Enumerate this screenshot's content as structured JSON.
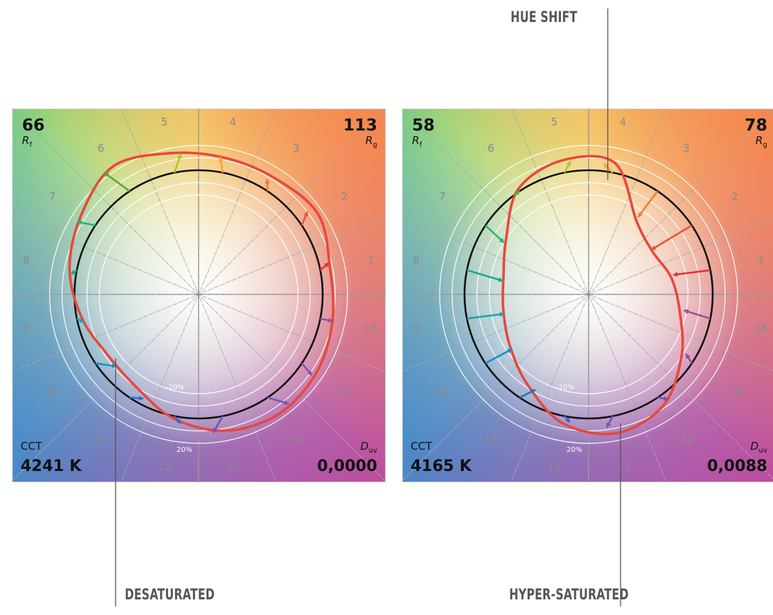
{
  "colors": {
    "reference_circle": "#111111",
    "test_curve": "#e8483b",
    "callout_line": "#555555",
    "guide_line": "#999999",
    "ring_line": "#ffffff"
  },
  "callouts": {
    "hue_shift": "HUE SHIFT",
    "desaturated": "DESATURATED",
    "hyper_saturated": "HYPER-SATURATED"
  },
  "panels": [
    {
      "rf_value": "66",
      "rf_symbol": "R",
      "rf_sub": "f",
      "rg_value": "113",
      "rg_symbol": "R",
      "rg_sub": "g",
      "cct_label": "CCT",
      "cct_value": "4241 K",
      "duv_symbol": "D",
      "duv_sub": "uv",
      "duv_value": "0,0000",
      "ring_label_inner": "-20%",
      "ring_label_outer": "20%",
      "hue_bin_labels": [
        "1",
        "2",
        "3",
        "4",
        "5",
        "6",
        "7",
        "8",
        "9",
        "10",
        "11",
        "12",
        "13",
        "14",
        "15",
        "16"
      ],
      "test_radius_ratio": [
        1.08,
        1.16,
        1.12,
        1.12,
        1.16,
        1.24,
        1.14,
        1.06,
        0.96,
        0.88,
        0.9,
        1.02,
        1.12,
        1.16,
        1.14,
        1.1
      ],
      "shift_vectors": [
        {
          "bin": 1,
          "ratio": 1.08,
          "dtheta": 0.04,
          "color": "#e8303a"
        },
        {
          "bin": 2,
          "ratio": 1.1,
          "dtheta": 0.06,
          "color": "#e8533a"
        },
        {
          "bin": 3,
          "ratio": 1.08,
          "dtheta": 0.05,
          "color": "#f07b2e"
        },
        {
          "bin": 4,
          "ratio": 1.12,
          "dtheta": 0.04,
          "color": "#f0a830"
        },
        {
          "bin": 5,
          "ratio": 1.14,
          "dtheta": -0.07,
          "color": "#b6c42e"
        },
        {
          "bin": 6,
          "ratio": 1.24,
          "dtheta": 0.07,
          "color": "#59a838"
        },
        {
          "bin": 7,
          "ratio": 1.14,
          "dtheta": 0.05,
          "color": "#2fb070"
        },
        {
          "bin": 8,
          "ratio": 1.04,
          "dtheta": 0.04,
          "color": "#18a890"
        },
        {
          "bin": 9,
          "ratio": 0.95,
          "dtheta": 0.04,
          "color": "#1aa3b0"
        },
        {
          "bin": 10,
          "ratio": 0.88,
          "dtheta": 0.13,
          "color": "#1a93c0"
        },
        {
          "bin": 11,
          "ratio": 0.95,
          "dtheta": 0.1,
          "color": "#2870c0"
        },
        {
          "bin": 12,
          "ratio": 1.05,
          "dtheta": 0.06,
          "color": "#4a5fc0"
        },
        {
          "bin": 13,
          "ratio": 1.12,
          "dtheta": -0.09,
          "color": "#6a58b8"
        },
        {
          "bin": 14,
          "ratio": 1.14,
          "dtheta": 0.1,
          "color": "#7a55b0"
        },
        {
          "bin": 15,
          "ratio": 1.12,
          "dtheta": -0.03,
          "color": "#8e4fa8"
        },
        {
          "bin": 16,
          "ratio": 1.1,
          "dtheta": 0.0,
          "color": "#a04f96"
        }
      ]
    },
    {
      "rf_value": "58",
      "rf_symbol": "R",
      "rf_sub": "f",
      "rg_value": "78",
      "rg_symbol": "R",
      "rg_sub": "g",
      "cct_label": "CCT",
      "cct_value": "4165 K",
      "duv_symbol": "D",
      "duv_sub": "uv",
      "duv_value": "0,0088",
      "ring_label_inner": "-20%",
      "ring_label_outer": "20%",
      "hue_bin_labels": [
        "1",
        "2",
        "3",
        "4",
        "5",
        "6",
        "7",
        "8",
        "9",
        "10",
        "11",
        "12",
        "13",
        "14",
        "15",
        "16"
      ],
      "test_radius_ratio": [
        0.68,
        0.62,
        0.7,
        1.08,
        1.1,
        1.02,
        0.8,
        0.7,
        0.7,
        0.76,
        0.88,
        1.06,
        1.14,
        1.08,
        0.9,
        0.75
      ],
      "shift_vectors": [
        {
          "bin": 1,
          "ratio": 0.7,
          "dtheta": 0.03,
          "color": "#e8303a"
        },
        {
          "bin": 2,
          "ratio": 0.62,
          "dtheta": 0.03,
          "color": "#e8533a"
        },
        {
          "bin": 3,
          "ratio": 0.74,
          "dtheta": 0.02,
          "color": "#f07b2e"
        },
        {
          "bin": 4,
          "ratio": 1.06,
          "dtheta": 0.08,
          "color": "#f0a830"
        },
        {
          "bin": 5,
          "ratio": 1.08,
          "dtheta": -0.06,
          "color": "#b6c42e"
        },
        {
          "bin": 6,
          "ratio": 1.0,
          "dtheta": 0.05,
          "color": "#59a838"
        },
        {
          "bin": 7,
          "ratio": 0.8,
          "dtheta": 0.04,
          "color": "#2fb070"
        },
        {
          "bin": 8,
          "ratio": 0.7,
          "dtheta": 0.04,
          "color": "#18a890"
        },
        {
          "bin": 9,
          "ratio": 0.7,
          "dtheta": 0.03,
          "color": "#1aa3b0"
        },
        {
          "bin": 10,
          "ratio": 0.76,
          "dtheta": 0.03,
          "color": "#1a93c0"
        },
        {
          "bin": 11,
          "ratio": 0.88,
          "dtheta": 0.08,
          "color": "#2870c0"
        },
        {
          "bin": 12,
          "ratio": 1.04,
          "dtheta": 0.05,
          "color": "#4a5fc0"
        },
        {
          "bin": 13,
          "ratio": 1.08,
          "dtheta": -0.06,
          "color": "#6a58b8"
        },
        {
          "bin": 14,
          "ratio": 1.06,
          "dtheta": 0.06,
          "color": "#7a55b0"
        },
        {
          "bin": 15,
          "ratio": 0.92,
          "dtheta": 0.04,
          "color": "#8e4fa8"
        },
        {
          "bin": 16,
          "ratio": 0.78,
          "dtheta": 0.03,
          "color": "#a04f96"
        }
      ]
    }
  ]
}
